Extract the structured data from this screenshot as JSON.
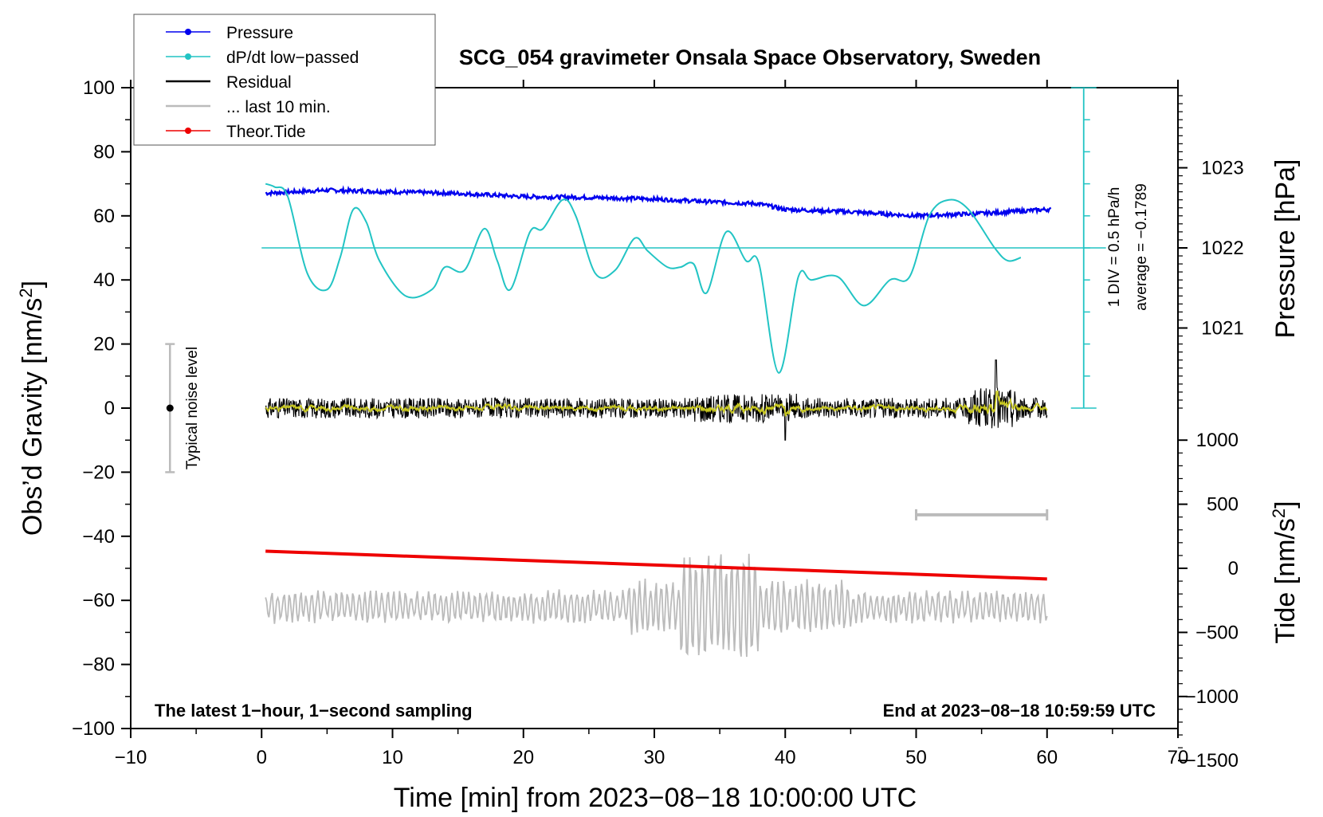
{
  "chart_data": {
    "type": "line",
    "title": "SCG_054 gravimeter Onsala Space Observatory, Sweden",
    "xlabel": "Time [min] from 2023−08−18 10:00:00 UTC",
    "ylabel_main": "Obs’d Gravity [nm/s",
    "ylabel_main_exp": "2",
    "ylabel_main_close": "]",
    "ylabel_pressure": "Pressure [hPa]",
    "ylabel_tide": "Tide [nm/s",
    "ylabel_tide_exp": "2",
    "ylabel_tide_close": "]",
    "xlim": [
      -10,
      70
    ],
    "ylim": [
      -100,
      100
    ],
    "x_ticks": [
      "−10",
      "0",
      "10",
      "20",
      "30",
      "40",
      "50",
      "60",
      "70"
    ],
    "y_ticks": [
      "100",
      "80",
      "60",
      "40",
      "20",
      "0",
      "−20",
      "−40",
      "−60",
      "−80",
      "−100"
    ],
    "pressure_ticks": [
      "1023",
      "1022",
      "1021"
    ],
    "pressure_tick_values": [
      1023,
      1022,
      1021
    ],
    "tide_ticks": [
      "1000",
      "500",
      "0",
      "−500",
      "−1000",
      "−1500"
    ],
    "tide_tick_values": [
      1000,
      500,
      0,
      -500,
      -1000,
      -1500
    ],
    "legend": [
      {
        "label": "Pressure",
        "color": "#0000ee",
        "marker": true
      },
      {
        "label": "dP/dt low−passed",
        "color": "#22c4c4",
        "marker": true
      },
      {
        "label": "Residual",
        "color": "#000000",
        "marker": false
      },
      {
        "label": "... last 10 min.",
        "color": "#bbbbbb",
        "marker": false
      },
      {
        "label": "Theor.Tide",
        "color": "#ee0000",
        "marker": true
      }
    ],
    "dpdt_scale_label": "1 DIV = 0.5 hPa/h",
    "dpdt_average_label": "average = −0.1789",
    "noise_label": "Typical noise level",
    "noise_range": [
      -20,
      20
    ],
    "bottom_left_note": "The latest 1−hour, 1−second sampling",
    "bottom_right_note": "End at 2023−08−18 10:59:59 UTC",
    "last10_bar_x": [
      50,
      60
    ],
    "series": [
      {
        "name": "Pressure",
        "unit": "hPa",
        "x": [
          0,
          5,
          10,
          15,
          20,
          25,
          30,
          35,
          38,
          40,
          45,
          50,
          55,
          60
        ],
        "values": [
          1022.68,
          1022.72,
          1022.7,
          1022.68,
          1022.64,
          1022.63,
          1022.61,
          1022.57,
          1022.55,
          1022.48,
          1022.45,
          1022.4,
          1022.43,
          1022.48
        ]
      },
      {
        "name": "dP/dt low-passed",
        "unit": "nm/s^2 plot units",
        "x": [
          0.3,
          1,
          2,
          3.5,
          5,
          6,
          7,
          8,
          9,
          11,
          13,
          14,
          15.5,
          17,
          18,
          19,
          20.5,
          21.5,
          23,
          24,
          25.5,
          27,
          28.5,
          29.5,
          31,
          32,
          33,
          34,
          35.5,
          37,
          38,
          39.5,
          41,
          42,
          44,
          46,
          48,
          49.5,
          51,
          52.5,
          54,
          56,
          57,
          58
        ],
        "values": [
          70,
          69,
          66,
          42,
          37,
          47,
          62,
          58,
          46,
          35,
          37,
          44,
          43,
          56,
          46,
          37,
          55,
          56,
          65,
          60,
          42,
          43,
          53,
          49,
          44,
          44,
          45,
          36,
          55,
          46,
          45,
          11,
          41,
          40,
          41,
          32,
          40,
          41,
          60,
          65,
          62,
          50,
          46,
          47
        ]
      },
      {
        "name": "Residual",
        "x": [
          0.3,
          60
        ],
        "values": [
          0,
          0
        ]
      },
      {
        "name": "... last 10 min.",
        "x": [
          0.3,
          60
        ],
        "values": [
          -62,
          -62
        ]
      },
      {
        "name": "Theor.Tide",
        "unit": "nm/s^2",
        "x": [
          0.3,
          60
        ],
        "values": [
          134,
          -83
        ]
      }
    ]
  }
}
